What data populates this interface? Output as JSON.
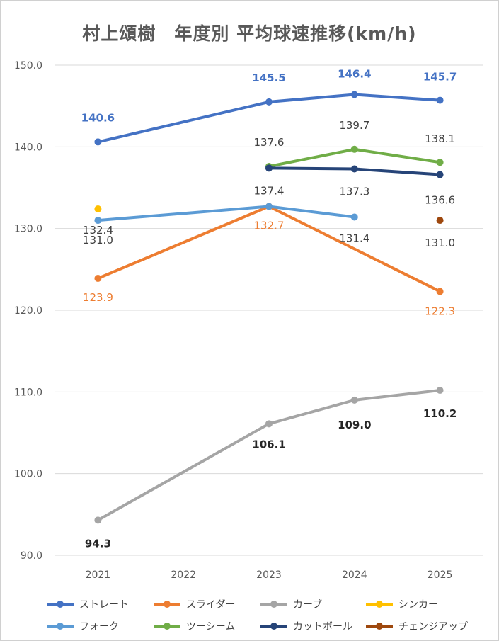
{
  "chart_data": {
    "type": "line",
    "title": "村上頌樹　年度別 平均球速推移(km/h)",
    "categories": [
      "2021",
      "2022",
      "2023",
      "2024",
      "2025"
    ],
    "ylim": [
      90,
      150
    ],
    "yticks": [
      "90.0",
      "100.0",
      "110.0",
      "120.0",
      "130.0",
      "140.0",
      "150.0"
    ],
    "grid": true,
    "legend_position": "bottom",
    "series": [
      {
        "name": "ストレート",
        "color": "#4472C4",
        "values": [
          140.6,
          null,
          145.5,
          146.4,
          145.7
        ],
        "labels": [
          "140.6",
          "",
          "145.5",
          "146.4",
          "145.7"
        ],
        "label_color": "#4472C4",
        "bold": true
      },
      {
        "name": "スライダー",
        "color": "#ED7D31",
        "values": [
          123.9,
          null,
          132.7,
          null,
          122.3
        ],
        "labels": [
          "123.9",
          "",
          "132.7",
          "",
          "122.3"
        ],
        "label_color": "#ED7D31",
        "bold": false
      },
      {
        "name": "カーブ",
        "color": "#A5A5A5",
        "values": [
          94.3,
          null,
          106.1,
          109.0,
          110.2
        ],
        "labels": [
          "94.3",
          "",
          "106.1",
          "109.0",
          "110.2"
        ],
        "label_color": "#262626",
        "bold": true
      },
      {
        "name": "シンカー",
        "color": "#FFC000",
        "values": [
          132.4,
          null,
          null,
          null,
          null
        ],
        "labels": [
          "132.4",
          "",
          "",
          "",
          ""
        ],
        "label_color": "#404040",
        "bold": false
      },
      {
        "name": "フォーク",
        "color": "#5B9BD5",
        "values": [
          131.0,
          null,
          132.7,
          131.4,
          null
        ],
        "labels": [
          "131.0",
          "",
          "",
          "131.4",
          ""
        ],
        "label_color": "#404040",
        "bold": false
      },
      {
        "name": "ツーシーム",
        "color": "#70AD47",
        "values": [
          null,
          null,
          137.6,
          139.7,
          138.1
        ],
        "labels": [
          "",
          "",
          "137.6",
          "139.7",
          "138.1"
        ],
        "label_color": "#404040",
        "bold": false
      },
      {
        "name": "カットボール",
        "color": "#264478",
        "values": [
          null,
          null,
          137.4,
          137.3,
          136.6
        ],
        "labels": [
          "",
          "",
          "137.4",
          "137.3",
          "136.6"
        ],
        "label_color": "#404040",
        "bold": false
      },
      {
        "name": "チェンジアップ",
        "color": "#9E480E",
        "values": [
          null,
          null,
          null,
          null,
          131.0
        ],
        "labels": [
          "",
          "",
          "",
          "",
          "131.0"
        ],
        "label_color": "#404040",
        "bold": false
      }
    ]
  }
}
